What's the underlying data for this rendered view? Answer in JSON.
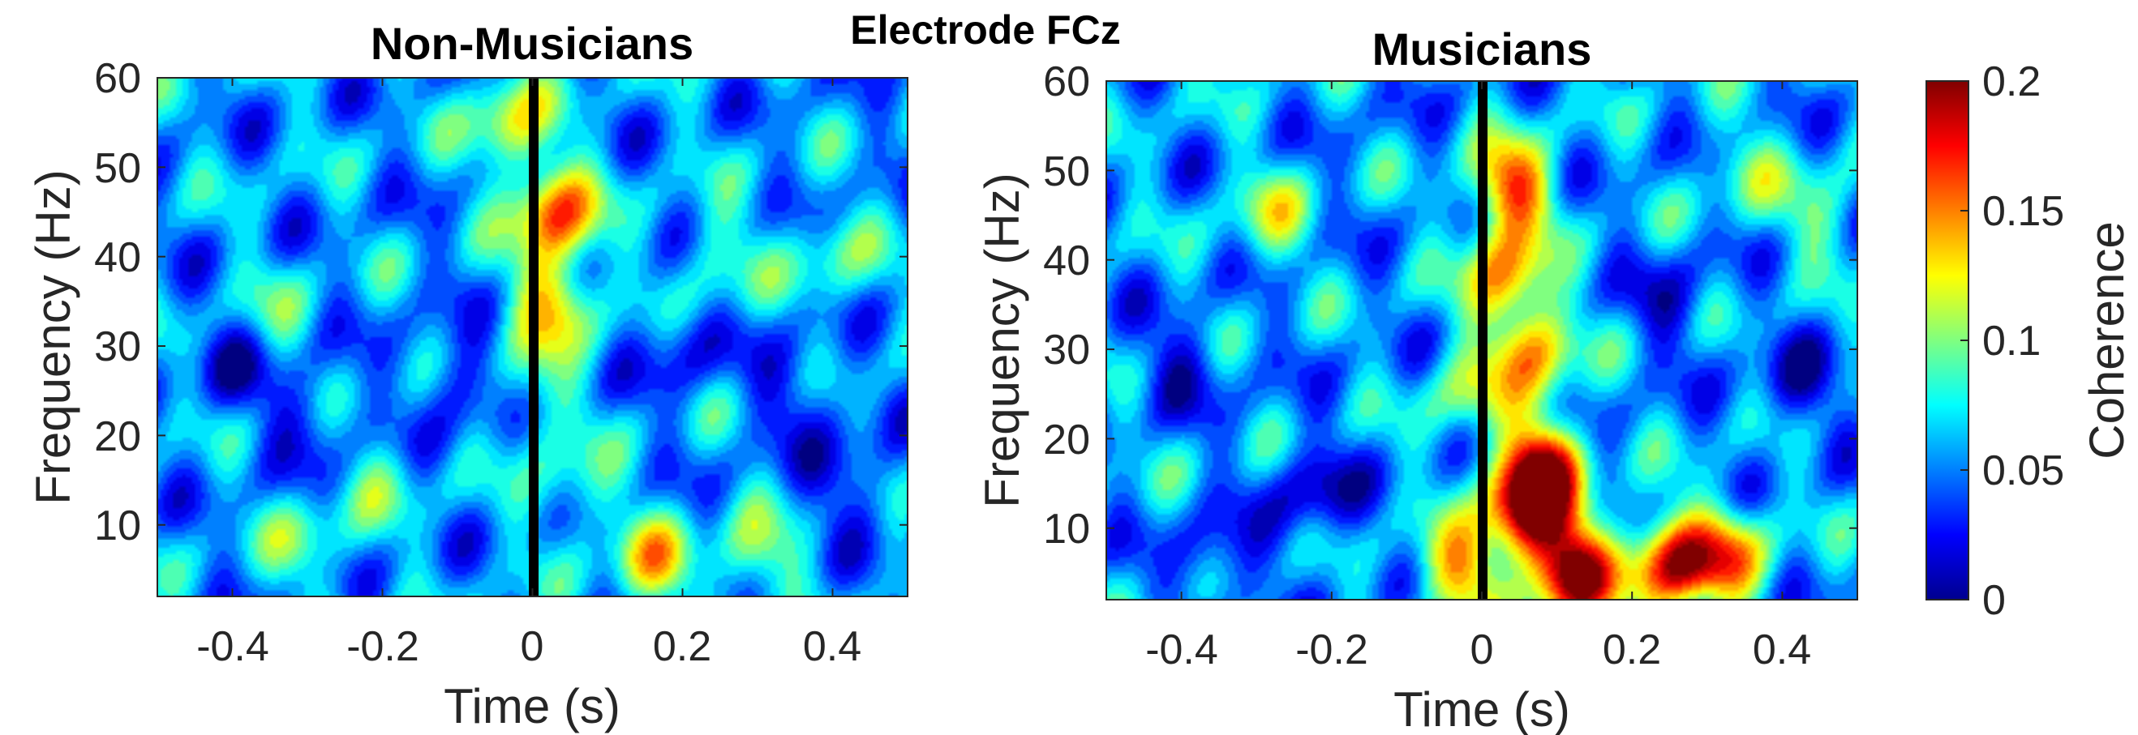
{
  "figure": {
    "super_title": "Electrode FCz"
  },
  "chart_data": [
    {
      "type": "heatmap",
      "title": "Non-Musicians",
      "xlabel": "Time (s)",
      "ylabel": "Frequency (Hz)",
      "xlim": [
        -0.5,
        0.5
      ],
      "ylim": [
        2,
        60
      ],
      "xticks": [
        -0.4,
        -0.2,
        0,
        0.2,
        0.4
      ],
      "xtick_labels": [
        "-0.4",
        "-0.2",
        "0",
        "0.2",
        "0.4"
      ],
      "yticks": [
        10,
        20,
        30,
        40,
        50,
        60
      ],
      "ytick_labels": [
        "10",
        "20",
        "30",
        "40",
        "50",
        "60"
      ],
      "colormap": "jet",
      "clim": [
        0,
        0.2
      ],
      "marker_line": {
        "x": 0,
        "color": "#000000"
      },
      "background_value": 0.055,
      "hotspots": [
        {
          "t": 0.03,
          "f": 45,
          "value": 0.16
        },
        {
          "t": 0.03,
          "f": 35,
          "value": 0.13
        },
        {
          "t": -0.03,
          "f": 55,
          "value": 0.12
        },
        {
          "t": 0.0,
          "f": 25,
          "value": 0.09
        },
        {
          "t": 0.16,
          "f": 6,
          "value": 0.12
        },
        {
          "t": 0.3,
          "f": 6,
          "value": 0.1
        },
        {
          "t": -0.3,
          "f": 8,
          "value": 0.09
        },
        {
          "t": -0.2,
          "f": 15,
          "value": 0.08
        },
        {
          "t": 0.05,
          "f": 14,
          "value": 0.09
        },
        {
          "t": 0.25,
          "f": 40,
          "value": 0.09
        },
        {
          "t": 0.4,
          "f": 40,
          "value": 0.09
        },
        {
          "t": -0.35,
          "f": 33,
          "value": 0.08
        },
        {
          "t": -0.4,
          "f": 28,
          "value": 0.02
        },
        {
          "t": -0.3,
          "f": 22,
          "value": 0.025
        },
        {
          "t": -0.1,
          "f": 26,
          "value": 0.02
        },
        {
          "t": 0.2,
          "f": 30,
          "value": 0.025
        },
        {
          "t": 0.42,
          "f": 15,
          "value": 0.02
        },
        {
          "t": 0.35,
          "f": 25,
          "value": 0.025
        }
      ]
    },
    {
      "type": "heatmap",
      "title": "Musicians",
      "xlabel": "Time (s)",
      "ylabel": "Frequency (Hz)",
      "xlim": [
        -0.5,
        0.5
      ],
      "ylim": [
        2,
        60
      ],
      "xticks": [
        -0.4,
        -0.2,
        0,
        0.2,
        0.4
      ],
      "xtick_labels": [
        "-0.4",
        "-0.2",
        "0",
        "0.2",
        "0.4"
      ],
      "yticks": [
        10,
        20,
        30,
        40,
        50,
        60
      ],
      "ytick_labels": [
        "10",
        "20",
        "30",
        "40",
        "50",
        "60"
      ],
      "colormap": "jet",
      "clim": [
        0,
        0.2
      ],
      "marker_line": {
        "x": 0,
        "color": "#000000"
      },
      "background_value": 0.055,
      "hotspots": [
        {
          "t": 0.12,
          "f": 5,
          "value": 0.21
        },
        {
          "t": 0.25,
          "f": 6,
          "value": 0.18
        },
        {
          "t": 0.33,
          "f": 7,
          "value": 0.14
        },
        {
          "t": 0.06,
          "f": 12,
          "value": 0.19
        },
        {
          "t": 0.08,
          "f": 17,
          "value": 0.17
        },
        {
          "t": 0.04,
          "f": 48,
          "value": 0.16
        },
        {
          "t": 0.03,
          "f": 38,
          "value": 0.14
        },
        {
          "t": 0.07,
          "f": 30,
          "value": 0.14
        },
        {
          "t": -0.03,
          "f": 5,
          "value": 0.14
        },
        {
          "t": -0.02,
          "f": 25,
          "value": 0.1
        },
        {
          "t": -0.28,
          "f": 45,
          "value": 0.1
        },
        {
          "t": -0.4,
          "f": 20,
          "value": 0.06
        },
        {
          "t": -0.22,
          "f": 14,
          "value": 0.01
        },
        {
          "t": -0.35,
          "f": 6,
          "value": 0.02
        },
        {
          "t": -0.4,
          "f": 28,
          "value": 0.02
        },
        {
          "t": 0.25,
          "f": 35,
          "value": 0.025
        },
        {
          "t": 0.42,
          "f": 26,
          "value": 0.02
        },
        {
          "t": 0.35,
          "f": 50,
          "value": 0.09
        },
        {
          "t": 0.45,
          "f": 45,
          "value": 0.09
        }
      ]
    }
  ],
  "colorbar": {
    "label": "Coherence",
    "clim": [
      0,
      0.2
    ],
    "ticks": [
      0,
      0.05,
      0.1,
      0.15,
      0.2
    ],
    "tick_labels": [
      "0",
      "0.05",
      "0.1",
      "0.15",
      "0.2"
    ]
  }
}
